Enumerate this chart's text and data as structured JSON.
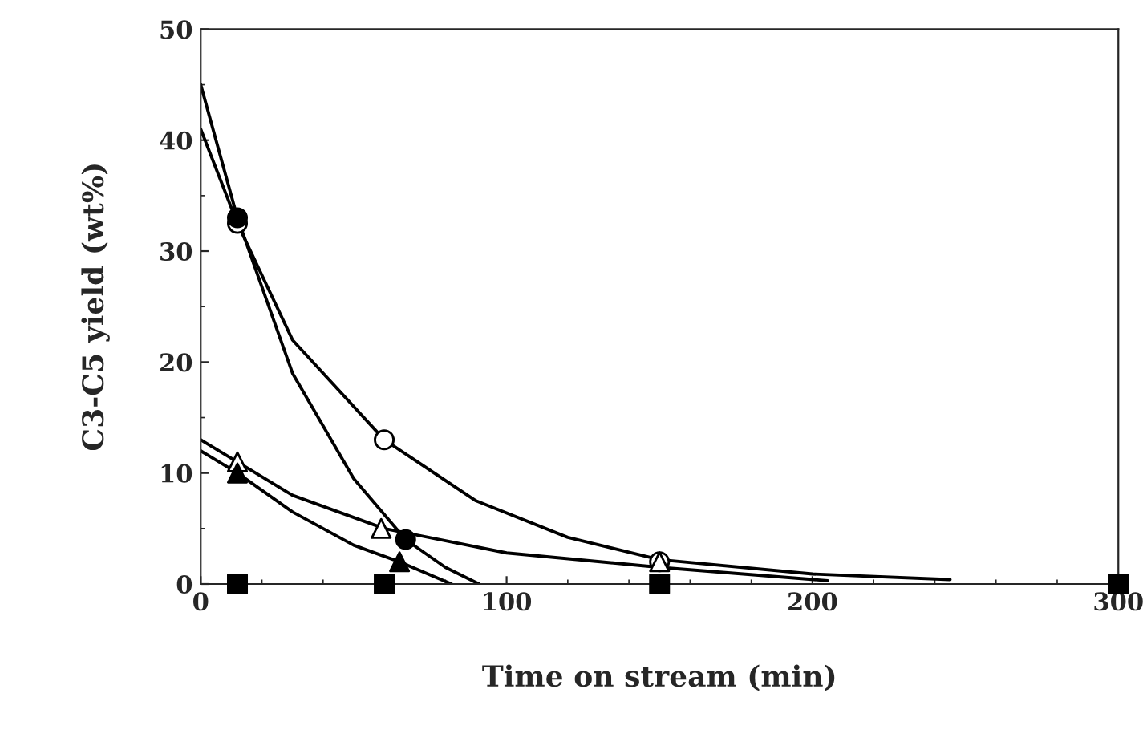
{
  "chart_data": {
    "type": "scatter",
    "xlabel": "Time on stream (min)",
    "ylabel": "C3-C5 yield (wt%)",
    "xlim": [
      0,
      300
    ],
    "ylim": [
      0,
      50
    ],
    "xticks": [
      0,
      100,
      200,
      300
    ],
    "yticks": [
      0,
      10,
      20,
      30,
      40,
      50
    ],
    "grid": false,
    "legend": false,
    "series": [
      {
        "type": "line",
        "color": "#000000",
        "marker": "none",
        "x": [
          0,
          12,
          30,
          60,
          90,
          120,
          150,
          200,
          245
        ],
        "values": [
          41,
          32.5,
          22,
          13,
          7.5,
          4.2,
          2.2,
          0.9,
          0.4
        ]
      },
      {
        "type": "line",
        "color": "#000000",
        "marker": "none",
        "x": [
          0,
          12,
          30,
          50,
          67,
          80,
          91
        ],
        "values": [
          45,
          33,
          19,
          9.5,
          4,
          1.5,
          0
        ]
      },
      {
        "type": "line",
        "color": "#000000",
        "marker": "none",
        "x": [
          0,
          12,
          30,
          60,
          100,
          150,
          205
        ],
        "values": [
          13,
          11,
          8,
          5,
          2.8,
          1.5,
          0.3
        ]
      },
      {
        "type": "line",
        "color": "#000000",
        "marker": "none",
        "x": [
          0,
          12,
          30,
          50,
          65,
          82
        ],
        "values": [
          12,
          10,
          6.5,
          3.5,
          2,
          0
        ]
      },
      {
        "color": "#ffffff",
        "marker": "circle",
        "x": [
          12,
          60,
          150
        ],
        "values": [
          32.5,
          13,
          2
        ]
      },
      {
        "color": "#000000",
        "marker": "circle",
        "x": [
          12,
          67
        ],
        "values": [
          33,
          4
        ]
      },
      {
        "color": "#ffffff",
        "marker": "triangle",
        "x": [
          12,
          59,
          150
        ],
        "values": [
          11,
          5,
          2
        ]
      },
      {
        "color": "#000000",
        "marker": "triangle",
        "x": [
          12,
          65
        ],
        "values": [
          10,
          2
        ]
      },
      {
        "color": "#000000",
        "marker": "square",
        "x": [
          12,
          60,
          150,
          300
        ],
        "values": [
          0,
          0,
          0,
          0
        ]
      }
    ]
  }
}
